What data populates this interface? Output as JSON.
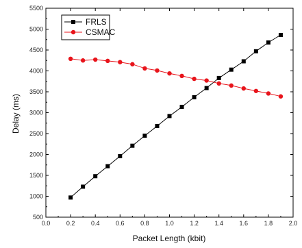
{
  "chart_data": {
    "type": "line",
    "xlabel": "Packet Length (kbit)",
    "ylabel": "Delay (ms)",
    "xlim": [
      0.0,
      2.0
    ],
    "ylim": [
      500,
      5500
    ],
    "xticks": [
      0.0,
      0.2,
      0.4,
      0.6,
      0.8,
      1.0,
      1.2,
      1.4,
      1.6,
      1.8,
      2.0
    ],
    "yticks": [
      500,
      1000,
      1500,
      2000,
      2500,
      3000,
      3500,
      4000,
      4500,
      5000,
      5500
    ],
    "xtick_labels": [
      "0.0",
      "0.2",
      "0.4",
      "0.6",
      "0.8",
      "1.0",
      "1.2",
      "1.4",
      "1.6",
      "1.8",
      "2.0"
    ],
    "ytick_labels": [
      "500",
      "1000",
      "1500",
      "2000",
      "2500",
      "3000",
      "3500",
      "4000",
      "4500",
      "5000",
      "5500"
    ],
    "grid": false,
    "legend_position": "top-left",
    "x": [
      0.2,
      0.3,
      0.4,
      0.5,
      0.6,
      0.7,
      0.8,
      0.9,
      1.0,
      1.1,
      1.2,
      1.3,
      1.4,
      1.5,
      1.6,
      1.7,
      1.8,
      1.9
    ],
    "series": [
      {
        "name": "FRLS",
        "color": "#000000",
        "marker": "square",
        "values": [
          970,
          1230,
          1480,
          1720,
          1960,
          2210,
          2450,
          2680,
          2920,
          3140,
          3370,
          3590,
          3830,
          4030,
          4230,
          4470,
          4680,
          4860
        ]
      },
      {
        "name": "CSMAC",
        "color": "#e8141b",
        "marker": "circle",
        "values": [
          4290,
          4250,
          4270,
          4240,
          4210,
          4160,
          4060,
          4010,
          3940,
          3880,
          3810,
          3770,
          3700,
          3650,
          3580,
          3520,
          3460,
          3390
        ]
      }
    ]
  }
}
